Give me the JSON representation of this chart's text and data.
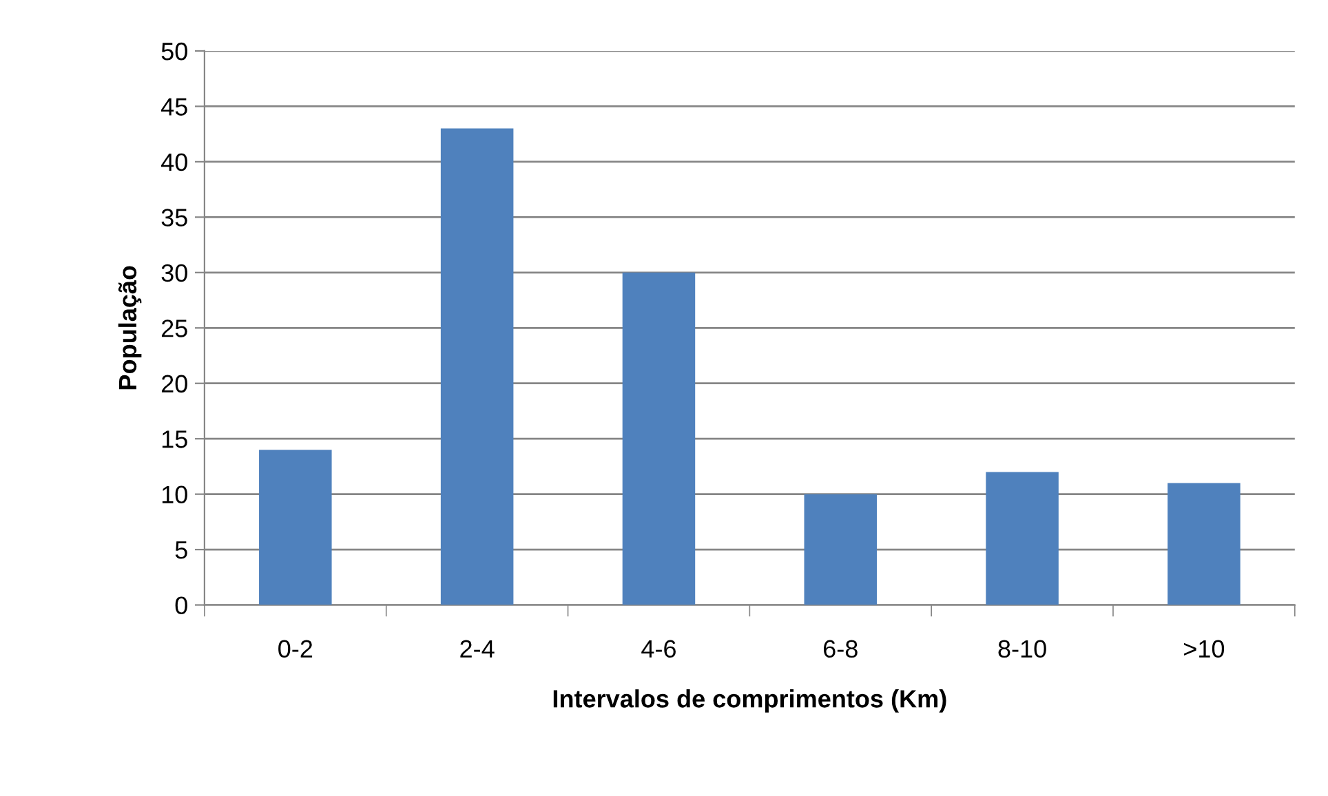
{
  "chart_data": {
    "type": "bar",
    "xlabel": "Intervalos de comprimentos (Km)",
    "ylabel": "População",
    "categories": [
      "0-2",
      "2-4",
      "4-6",
      "6-8",
      "8-10",
      ">10"
    ],
    "values": [
      14,
      43,
      30,
      10,
      12,
      11
    ],
    "color": "#4f81bd",
    "ylim": [
      0,
      50
    ],
    "yticks": [
      0,
      5,
      10,
      15,
      20,
      25,
      30,
      35,
      40,
      45,
      50
    ],
    "grid": "y",
    "legend": false
  }
}
